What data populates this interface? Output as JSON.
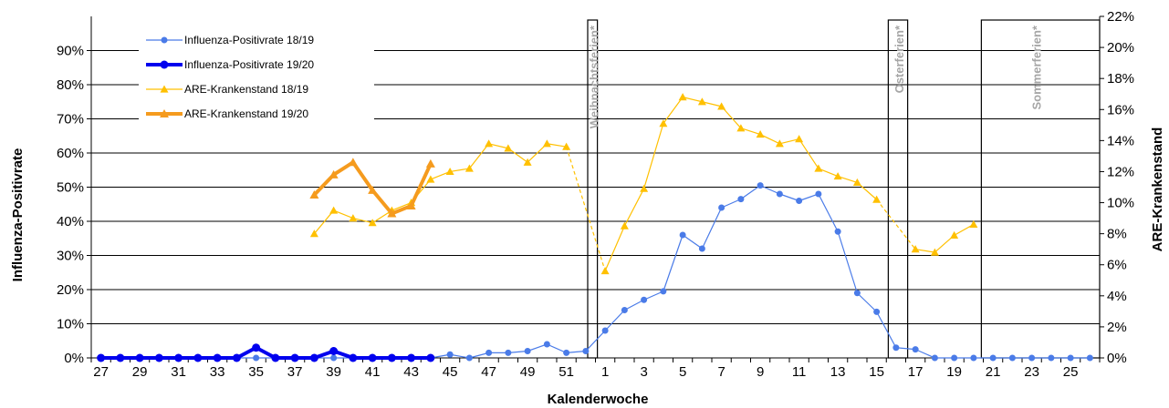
{
  "chart_data": {
    "type": "line",
    "xlabel": "Kalenderwoche",
    "ylabel": "Influenza-Positivrate",
    "y2label": "ARE-Krankenstand",
    "ylim": [
      0,
      100
    ],
    "y2lim": [
      0,
      22
    ],
    "grid": true,
    "legend_position": "top-left",
    "categories": [
      "27",
      "28",
      "29",
      "30",
      "31",
      "32",
      "33",
      "34",
      "35",
      "36",
      "37",
      "38",
      "39",
      "40",
      "41",
      "42",
      "43",
      "44",
      "45",
      "46",
      "47",
      "48",
      "49",
      "50",
      "51",
      "52",
      "1",
      "2",
      "3",
      "4",
      "5",
      "6",
      "7",
      "8",
      "9",
      "10",
      "11",
      "12",
      "13",
      "14",
      "15",
      "16",
      "17",
      "18",
      "19",
      "20",
      "21",
      "22",
      "23",
      "24",
      "25",
      "26"
    ],
    "x_tick_labels": [
      "27",
      "29",
      "31",
      "33",
      "35",
      "37",
      "39",
      "41",
      "43",
      "45",
      "47",
      "49",
      "51",
      "1",
      "3",
      "5",
      "7",
      "9",
      "11",
      "13",
      "15",
      "17",
      "19",
      "21",
      "23",
      "25"
    ],
    "y_tick_labels": [
      "0%",
      "10%",
      "20%",
      "30%",
      "40%",
      "50%",
      "60%",
      "70%",
      "80%",
      "90%"
    ],
    "y2_tick_labels": [
      "0%",
      "2%",
      "4%",
      "6%",
      "8%",
      "10%",
      "12%",
      "14%",
      "16%",
      "18%",
      "20%",
      "22%"
    ],
    "holidays": [
      {
        "label": "Weihnachtsferien*",
        "from": "52",
        "to": "1"
      },
      {
        "label": "Osterferien*",
        "from": "16",
        "to": "17"
      },
      {
        "label": "Sommerferien*",
        "from": "21",
        "to": "26"
      }
    ],
    "series": [
      {
        "name": "Influenza-Positivrate 18/19",
        "axis": "left",
        "color": "#4a7be8",
        "style": "thin-circle",
        "values": [
          0,
          0,
          0,
          0,
          0,
          0,
          0,
          0,
          0,
          0,
          0,
          0,
          0,
          0,
          0,
          0,
          0,
          0,
          1,
          0,
          1.5,
          1.5,
          2,
          4,
          1.5,
          2,
          8,
          14,
          17,
          19.5,
          36,
          32,
          44,
          46.5,
          50.5,
          48,
          46,
          48,
          37,
          19,
          13.5,
          3,
          2.5,
          0,
          0,
          0,
          0,
          0,
          0,
          0,
          0,
          0
        ]
      },
      {
        "name": "Influenza-Positivrate 19/20",
        "axis": "left",
        "color": "#0000ee",
        "style": "thick-circle",
        "values": [
          0,
          0,
          0,
          0,
          0,
          0,
          0,
          0,
          3,
          0,
          0,
          0,
          2,
          0,
          0,
          0,
          0,
          0,
          null,
          null,
          null,
          null,
          null,
          null,
          null,
          null,
          null,
          null,
          null,
          null,
          null,
          null,
          null,
          null,
          null,
          null,
          null,
          null,
          null,
          null,
          null,
          null,
          null,
          null,
          null,
          null,
          null,
          null,
          null,
          null,
          null,
          null
        ]
      },
      {
        "name": "ARE-Krankenstand 18/19",
        "axis": "right",
        "color": "#ffc000",
        "style": "thin-triangle",
        "values": [
          null,
          null,
          null,
          null,
          null,
          null,
          null,
          null,
          null,
          null,
          null,
          8,
          9.5,
          9,
          8.7,
          9.5,
          10,
          11.5,
          12,
          12.2,
          13.8,
          13.5,
          12.6,
          13.8,
          13.6,
          null,
          5.6,
          8.5,
          10.9,
          15.1,
          16.8,
          16.5,
          16.2,
          14.8,
          14.4,
          13.8,
          14.1,
          12.2,
          11.7,
          11.3,
          10.2,
          null,
          7,
          6.8,
          7.9,
          8.6,
          null,
          null,
          null,
          null,
          null,
          null
        ]
      },
      {
        "name": "ARE-Krankenstand 19/20",
        "axis": "right",
        "color": "#f59b1e",
        "style": "thick-triangle",
        "values": [
          null,
          null,
          null,
          null,
          null,
          null,
          null,
          null,
          null,
          null,
          null,
          10.5,
          11.8,
          12.6,
          10.8,
          9.3,
          9.8,
          12.5,
          null,
          null,
          null,
          null,
          null,
          null,
          null,
          null,
          null,
          null,
          null,
          null,
          null,
          null,
          null,
          null,
          null,
          null,
          null,
          null,
          null,
          null,
          null,
          null,
          null,
          null,
          null,
          null,
          null,
          null,
          null,
          null,
          null,
          null
        ]
      }
    ]
  }
}
